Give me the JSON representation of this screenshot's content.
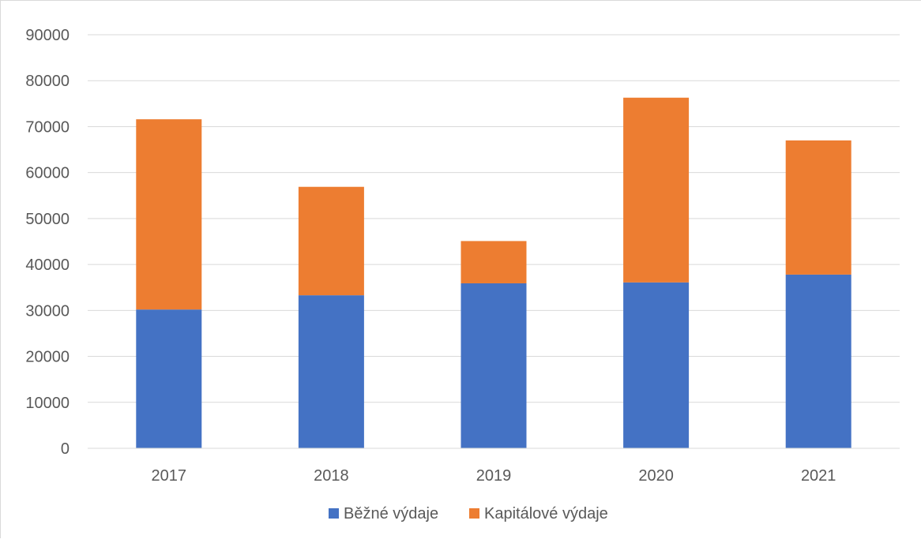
{
  "chart_data": {
    "type": "bar",
    "stacked": true,
    "categories": [
      "2017",
      "2018",
      "2019",
      "2020",
      "2021"
    ],
    "series": [
      {
        "name": "Běžné výdaje",
        "color": "#4472c4",
        "values": [
          30200,
          33300,
          35900,
          36100,
          37800
        ]
      },
      {
        "name": "Kapitálové výdaje",
        "color": "#ed7d31",
        "values": [
          41400,
          23600,
          9200,
          40200,
          29200
        ]
      }
    ],
    "title": "",
    "xlabel": "",
    "ylabel": "",
    "ylim": [
      0,
      90000
    ],
    "yticks": [
      "0",
      "10000",
      "20000",
      "30000",
      "40000",
      "50000",
      "60000",
      "70000",
      "80000",
      "90000"
    ],
    "grid": true,
    "legend_position": "bottom"
  }
}
